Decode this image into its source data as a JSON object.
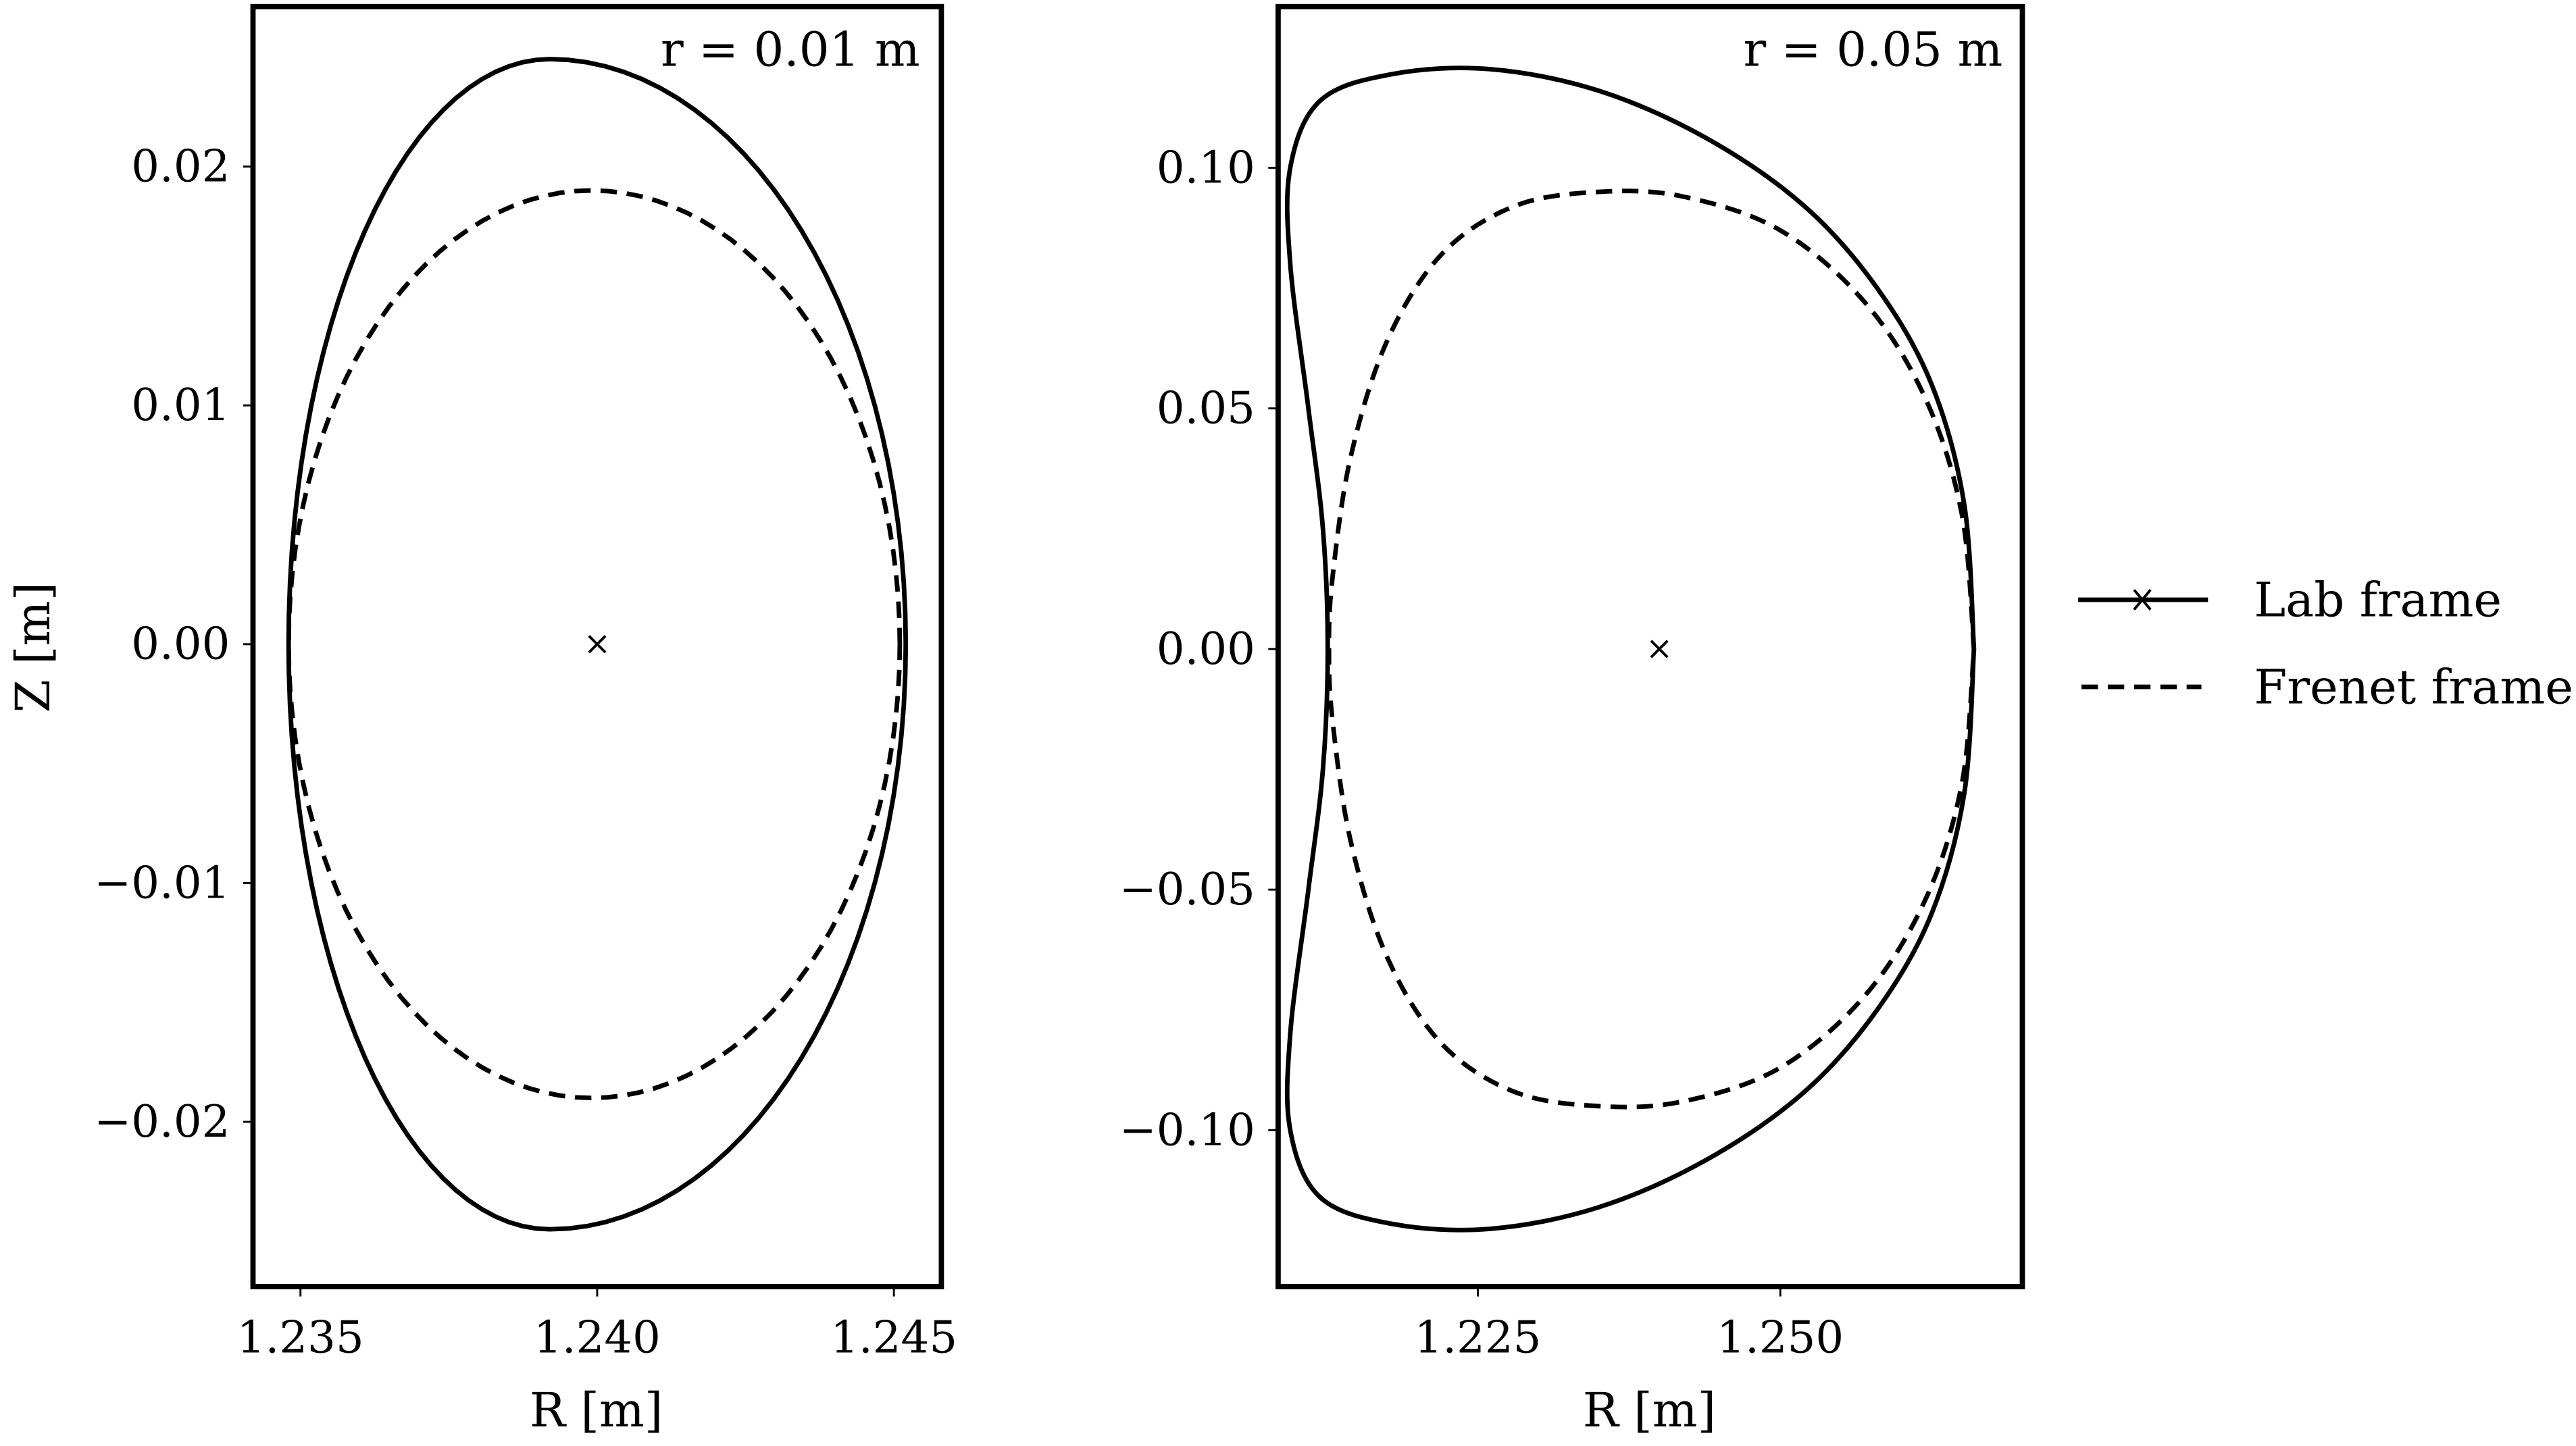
{
  "figure": {
    "legend": {
      "items": [
        {
          "label": "Lab frame",
          "style": "solid",
          "marker": "x"
        },
        {
          "label": "Frenet frame",
          "style": "dashed",
          "marker": ""
        }
      ]
    }
  },
  "chart_data": [
    {
      "type": "line",
      "title": "",
      "annotation": "r = 0.01 m",
      "xlabel": "R [m]",
      "ylabel": "Z [m]",
      "xlim": [
        1.2342,
        1.2458
      ],
      "ylim": [
        -0.0269,
        0.0267
      ],
      "xticks": [
        1.235,
        1.24,
        1.245
      ],
      "xtick_labels": [
        "1.235",
        "1.240",
        "1.245"
      ],
      "yticks": [
        0.02,
        0.01,
        0.0,
        -0.01,
        -0.02
      ],
      "ytick_labels": [
        "0.02",
        "0.01",
        "0.00",
        "−0.01",
        "−0.02"
      ],
      "grid": false,
      "axis_center": {
        "R": 1.24,
        "Z": 0.0,
        "marker": "x"
      },
      "series": [
        {
          "name": "Lab frame",
          "style": "solid",
          "shape": {
            "Rmin": 1.2348,
            "Rmax": 1.2452,
            "Ztop": 0.0245,
            "Ztop_R": 1.2392,
            "Zbot": -0.0245,
            "Zbot_R": 1.2392
          }
        },
        {
          "name": "Frenet frame",
          "style": "dashed",
          "shape": {
            "Rmin": 1.2348,
            "Rmax": 1.2451,
            "Ztop": 0.019,
            "Ztop_R": 1.2399,
            "Zbot": -0.019,
            "Zbot_R": 1.2399
          }
        }
      ]
    },
    {
      "type": "line",
      "title": "",
      "annotation": "r = 0.05 m",
      "xlabel": "R [m]",
      "ylabel": "",
      "xlim": [
        1.2085,
        1.27
      ],
      "ylim": [
        -0.1325,
        0.1335
      ],
      "xticks": [
        1.225,
        1.25
      ],
      "xtick_labels": [
        "1.225",
        "1.250"
      ],
      "yticks": [
        0.1,
        0.05,
        0.0,
        -0.05,
        -0.1
      ],
      "ytick_labels": [
        "0.10",
        "0.05",
        "0.00",
        "−0.05",
        "−0.10"
      ],
      "grid": false,
      "axis_center": {
        "R": 1.24,
        "Z": 0.0,
        "marker": "x"
      },
      "series": [
        {
          "name": "Lab frame",
          "style": "solid",
          "points": [
            [
              1.266,
              0.0
            ],
            [
              1.2652,
              0.03
            ],
            [
              1.2625,
              0.055
            ],
            [
              1.258,
              0.075
            ],
            [
              1.252,
              0.092
            ],
            [
              1.244,
              0.106
            ],
            [
              1.235,
              0.116
            ],
            [
              1.226,
              0.1205
            ],
            [
              1.218,
              0.1195
            ],
            [
              1.212,
              0.114
            ],
            [
              1.2095,
              0.1
            ],
            [
              1.2095,
              0.08
            ],
            [
              1.211,
              0.05
            ],
            [
              1.2122,
              0.025
            ],
            [
              1.2126,
              0.0
            ],
            [
              1.2122,
              -0.025
            ],
            [
              1.211,
              -0.05
            ],
            [
              1.2095,
              -0.08
            ],
            [
              1.2095,
              -0.1
            ],
            [
              1.212,
              -0.114
            ],
            [
              1.218,
              -0.1195
            ],
            [
              1.226,
              -0.1205
            ],
            [
              1.235,
              -0.116
            ],
            [
              1.244,
              -0.106
            ],
            [
              1.252,
              -0.092
            ],
            [
              1.258,
              -0.075
            ],
            [
              1.2625,
              -0.055
            ],
            [
              1.2652,
              -0.03
            ],
            [
              1.266,
              0.0
            ]
          ]
        },
        {
          "name": "Frenet frame",
          "style": "dashed",
          "points": [
            [
              1.266,
              0.0
            ],
            [
              1.265,
              0.028
            ],
            [
              1.262,
              0.052
            ],
            [
              1.257,
              0.072
            ],
            [
              1.25,
              0.087
            ],
            [
              1.242,
              0.094
            ],
            [
              1.235,
              0.095
            ],
            [
              1.228,
              0.092
            ],
            [
              1.222,
              0.082
            ],
            [
              1.2175,
              0.064
            ],
            [
              1.2145,
              0.04
            ],
            [
              1.213,
              0.015
            ],
            [
              1.2127,
              0.0
            ],
            [
              1.213,
              -0.015
            ],
            [
              1.2145,
              -0.04
            ],
            [
              1.2175,
              -0.064
            ],
            [
              1.222,
              -0.082
            ],
            [
              1.228,
              -0.092
            ],
            [
              1.235,
              -0.095
            ],
            [
              1.242,
              -0.094
            ],
            [
              1.25,
              -0.087
            ],
            [
              1.257,
              -0.072
            ],
            [
              1.262,
              -0.052
            ],
            [
              1.265,
              -0.028
            ],
            [
              1.266,
              0.0
            ]
          ]
        }
      ]
    }
  ]
}
